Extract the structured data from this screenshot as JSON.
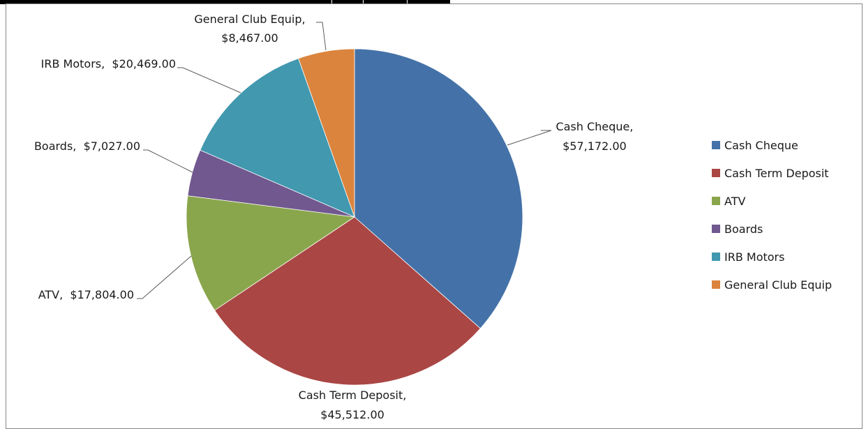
{
  "chart_data": {
    "type": "pie",
    "title": "",
    "categories": [
      "Cash Cheque",
      "Cash Term Deposit",
      "ATV",
      "Boards",
      "IRB Motors",
      "General Club Equip"
    ],
    "values": [
      57172,
      45512,
      17804,
      7027,
      20469,
      8467
    ],
    "value_labels": [
      "$57,172.00",
      "$45,512.00",
      "$17,804.00",
      "$7,027.00",
      "$20,469.00",
      "$8,467.00"
    ],
    "colors": [
      "#4472A8",
      "#AA4644",
      "#8AA64C",
      "#71588F",
      "#4198AF",
      "#DB843D"
    ],
    "label_separator": ",",
    "legend": {
      "position": "right",
      "entries": [
        "Cash Cheque",
        "Cash Term Deposit",
        "ATV",
        "Boards",
        "IRB Motors",
        "General Club Equip"
      ]
    }
  }
}
